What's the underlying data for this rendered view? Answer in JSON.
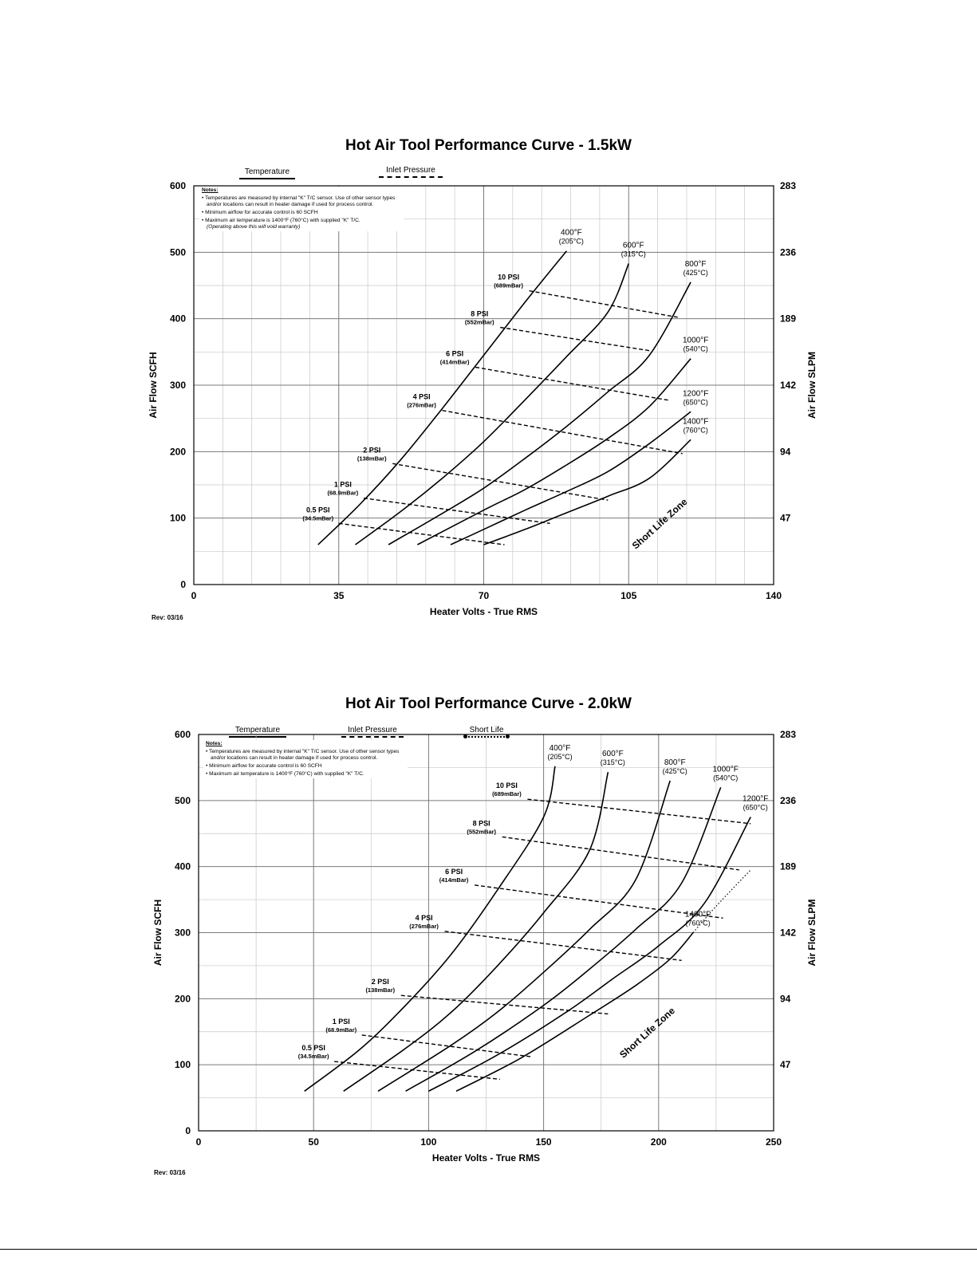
{
  "chart_data": [
    {
      "type": "line",
      "title": "Hot Air Tool Performance Curve - 1.5kW",
      "xlabel": "Heater Volts - True RMS",
      "ylabel": "Air Flow SCFH",
      "ylabel_right": "Air Flow SLPM",
      "xlim": [
        0,
        140
      ],
      "ylim": [
        0,
        600
      ],
      "x_ticks": [
        "0",
        "35",
        "70",
        "105",
        "140"
      ],
      "y_ticks": [
        "0",
        "100",
        "200",
        "300",
        "400",
        "500",
        "600"
      ],
      "y_right_ticks": [
        "47",
        "94",
        "142",
        "189",
        "236",
        "283"
      ],
      "legend": [
        {
          "label": "Temperature",
          "style": "solid"
        },
        {
          "label": "Inlet Pressure",
          "style": "dashed"
        }
      ],
      "notes_title": "Notes:",
      "notes": [
        "Temperatures are measured by internal \"K\" T/C sensor.  Use of other sensor types and/or locations can result in heater damage if used for process control.",
        "Minimum airflow for accurate control is 60 SCFH",
        "Maximum air temperature is 1400°F (760°C)  with supplied \"K\" T/C."
      ],
      "notes_italic": "(Operating above this will void warranty)",
      "zone_label": "Short Life Zone",
      "rev": "Rev:  03/16",
      "temperature_series": [
        {
          "label": "400°F",
          "sublabel": "(205°C)",
          "x": [
            30,
            40,
            50,
            60,
            70,
            80,
            90
          ],
          "y": [
            60,
            120,
            188,
            265,
            345,
            425,
            502
          ]
        },
        {
          "label": "600°F",
          "sublabel": "(315°C)",
          "x": [
            39,
            50,
            60,
            70,
            80,
            90,
            100,
            105
          ],
          "y": [
            60,
            110,
            160,
            215,
            278,
            343,
            410,
            483
          ]
        },
        {
          "label": "800°F",
          "sublabel": "(425°C)",
          "x": [
            47,
            60,
            70,
            80,
            90,
            100,
            110,
            120
          ],
          "y": [
            60,
            107,
            145,
            190,
            238,
            290,
            345,
            455
          ]
        },
        {
          "label": "1000°F",
          "sublabel": "(540°C)",
          "x": [
            54,
            70,
            80,
            90,
            100,
            110,
            120
          ],
          "y": [
            60,
            112,
            143,
            180,
            220,
            268,
            340
          ]
        },
        {
          "label": "1200°F",
          "sublabel": "(650°C)",
          "x": [
            62,
            70,
            80,
            90,
            100,
            110,
            120
          ],
          "y": [
            60,
            83,
            112,
            140,
            170,
            212,
            260
          ]
        },
        {
          "label": "1400°F",
          "sublabel": "(760°C)",
          "x": [
            70,
            80,
            90,
            100,
            110,
            120
          ],
          "y": [
            60,
            83,
            108,
            133,
            160,
            218
          ]
        }
      ],
      "pressure_series": [
        {
          "label": "10 PSI",
          "sublabel": "(689mBar)",
          "x": [
            81,
            117
          ],
          "y": [
            442,
            402
          ]
        },
        {
          "label": "8 PSI",
          "sublabel": "(552mBar)",
          "x": [
            74,
            110
          ],
          "y": [
            387,
            352
          ]
        },
        {
          "label": "6 PSI",
          "sublabel": "(414mBar)",
          "x": [
            68,
            115
          ],
          "y": [
            327,
            277
          ]
        },
        {
          "label": "4 PSI",
          "sublabel": "(276mBar)",
          "x": [
            60,
            118
          ],
          "y": [
            262,
            197
          ]
        },
        {
          "label": "2 PSI",
          "sublabel": "(138mBar)",
          "x": [
            48,
            100
          ],
          "y": [
            182,
            127
          ]
        },
        {
          "label": "1 PSI",
          "sublabel": "(68.9mBar)",
          "x": [
            41,
            86
          ],
          "y": [
            130,
            92
          ]
        },
        {
          "label": "0.5 PSI",
          "sublabel": "(34.5mBar)",
          "x": [
            35,
            75
          ],
          "y": [
            92,
            60
          ]
        }
      ]
    },
    {
      "type": "line",
      "title": "Hot Air Tool Performance Curve - 2.0kW",
      "xlabel": "Heater Volts - True RMS",
      "ylabel": "Air Flow SCFH",
      "ylabel_right": "Air Flow SLPM",
      "xlim": [
        0,
        250
      ],
      "ylim": [
        0,
        600
      ],
      "x_ticks": [
        "0",
        "50",
        "100",
        "150",
        "200",
        "250"
      ],
      "y_ticks": [
        "0",
        "100",
        "200",
        "300",
        "400",
        "500",
        "600"
      ],
      "y_right_ticks": [
        "47",
        "94",
        "142",
        "189",
        "236",
        "283"
      ],
      "legend": [
        {
          "label": "Temperature",
          "style": "solid"
        },
        {
          "label": "Inlet Pressure",
          "style": "dashed"
        },
        {
          "label": "Short Life",
          "style": "dotted"
        }
      ],
      "notes_title": "Notes:",
      "notes": [
        "Temperatures are measured by internal \"K\" T/C sensor.  Use of other sensor types and/or locations can result in heater damage if used for process control.",
        "Minimum airflow for accurate control is 60 SCFH",
        "Maximum air temperature is 1400°F (760°C)  with supplied \"K\" T/C."
      ],
      "zone_label": "Short Life Zone",
      "rev": "Rev:  03/16",
      "temperature_series": [
        {
          "label": "400°F",
          "sublabel": "(205°C)",
          "x": [
            46,
            70,
            90,
            110,
            130,
            150,
            155
          ],
          "y": [
            60,
            123,
            190,
            268,
            365,
            475,
            552
          ]
        },
        {
          "label": "600°F",
          "sublabel": "(315°C)",
          "x": [
            63,
            90,
            110,
            130,
            150,
            170,
            178
          ],
          "y": [
            60,
            125,
            180,
            250,
            330,
            425,
            543
          ]
        },
        {
          "label": "800°F",
          "sublabel": "(425°C)",
          "x": [
            78,
            110,
            130,
            150,
            170,
            190,
            205
          ],
          "y": [
            60,
            130,
            180,
            240,
            305,
            380,
            530
          ]
        },
        {
          "label": "1000°F",
          "sublabel": "(540°C)",
          "x": [
            90,
            120,
            150,
            170,
            190,
            210,
            227
          ],
          "y": [
            60,
            120,
            190,
            245,
            305,
            375,
            520
          ]
        },
        {
          "label": "1200°F",
          "sublabel": "(650°C)",
          "x": [
            100,
            130,
            160,
            180,
            200,
            220,
            240
          ],
          "y": [
            60,
            115,
            180,
            230,
            280,
            345,
            475
          ]
        },
        {
          "label": "1400°F",
          "sublabel": "(760°C)",
          "x": [
            112,
            140,
            170,
            190,
            205,
            215
          ],
          "y": [
            60,
            110,
            175,
            220,
            260,
            300
          ]
        }
      ],
      "short_life_series": [
        {
          "x": [
            215,
            225,
            240
          ],
          "y": [
            300,
            340,
            395
          ]
        }
      ],
      "pressure_series": [
        {
          "label": "10 PSI",
          "sublabel": "(689mBar)",
          "x": [
            143,
            240
          ],
          "y": [
            502,
            465
          ]
        },
        {
          "label": "8 PSI",
          "sublabel": "(552mBar)",
          "x": [
            132,
            235
          ],
          "y": [
            445,
            395
          ]
        },
        {
          "label": "6 PSI",
          "sublabel": "(414mBar)",
          "x": [
            120,
            228
          ],
          "y": [
            372,
            322
          ]
        },
        {
          "label": "4 PSI",
          "sublabel": "(276mBar)",
          "x": [
            107,
            210
          ],
          "y": [
            302,
            258
          ]
        },
        {
          "label": "2 PSI",
          "sublabel": "(138mBar)",
          "x": [
            88,
            178
          ],
          "y": [
            205,
            177
          ]
        },
        {
          "label": "1 PSI",
          "sublabel": "(68.9mBar)",
          "x": [
            71,
            145
          ],
          "y": [
            145,
            112
          ]
        },
        {
          "label": "0.5 PSI",
          "sublabel": "(34.5mBar)",
          "x": [
            59,
            131
          ],
          "y": [
            105,
            78
          ]
        }
      ]
    }
  ]
}
